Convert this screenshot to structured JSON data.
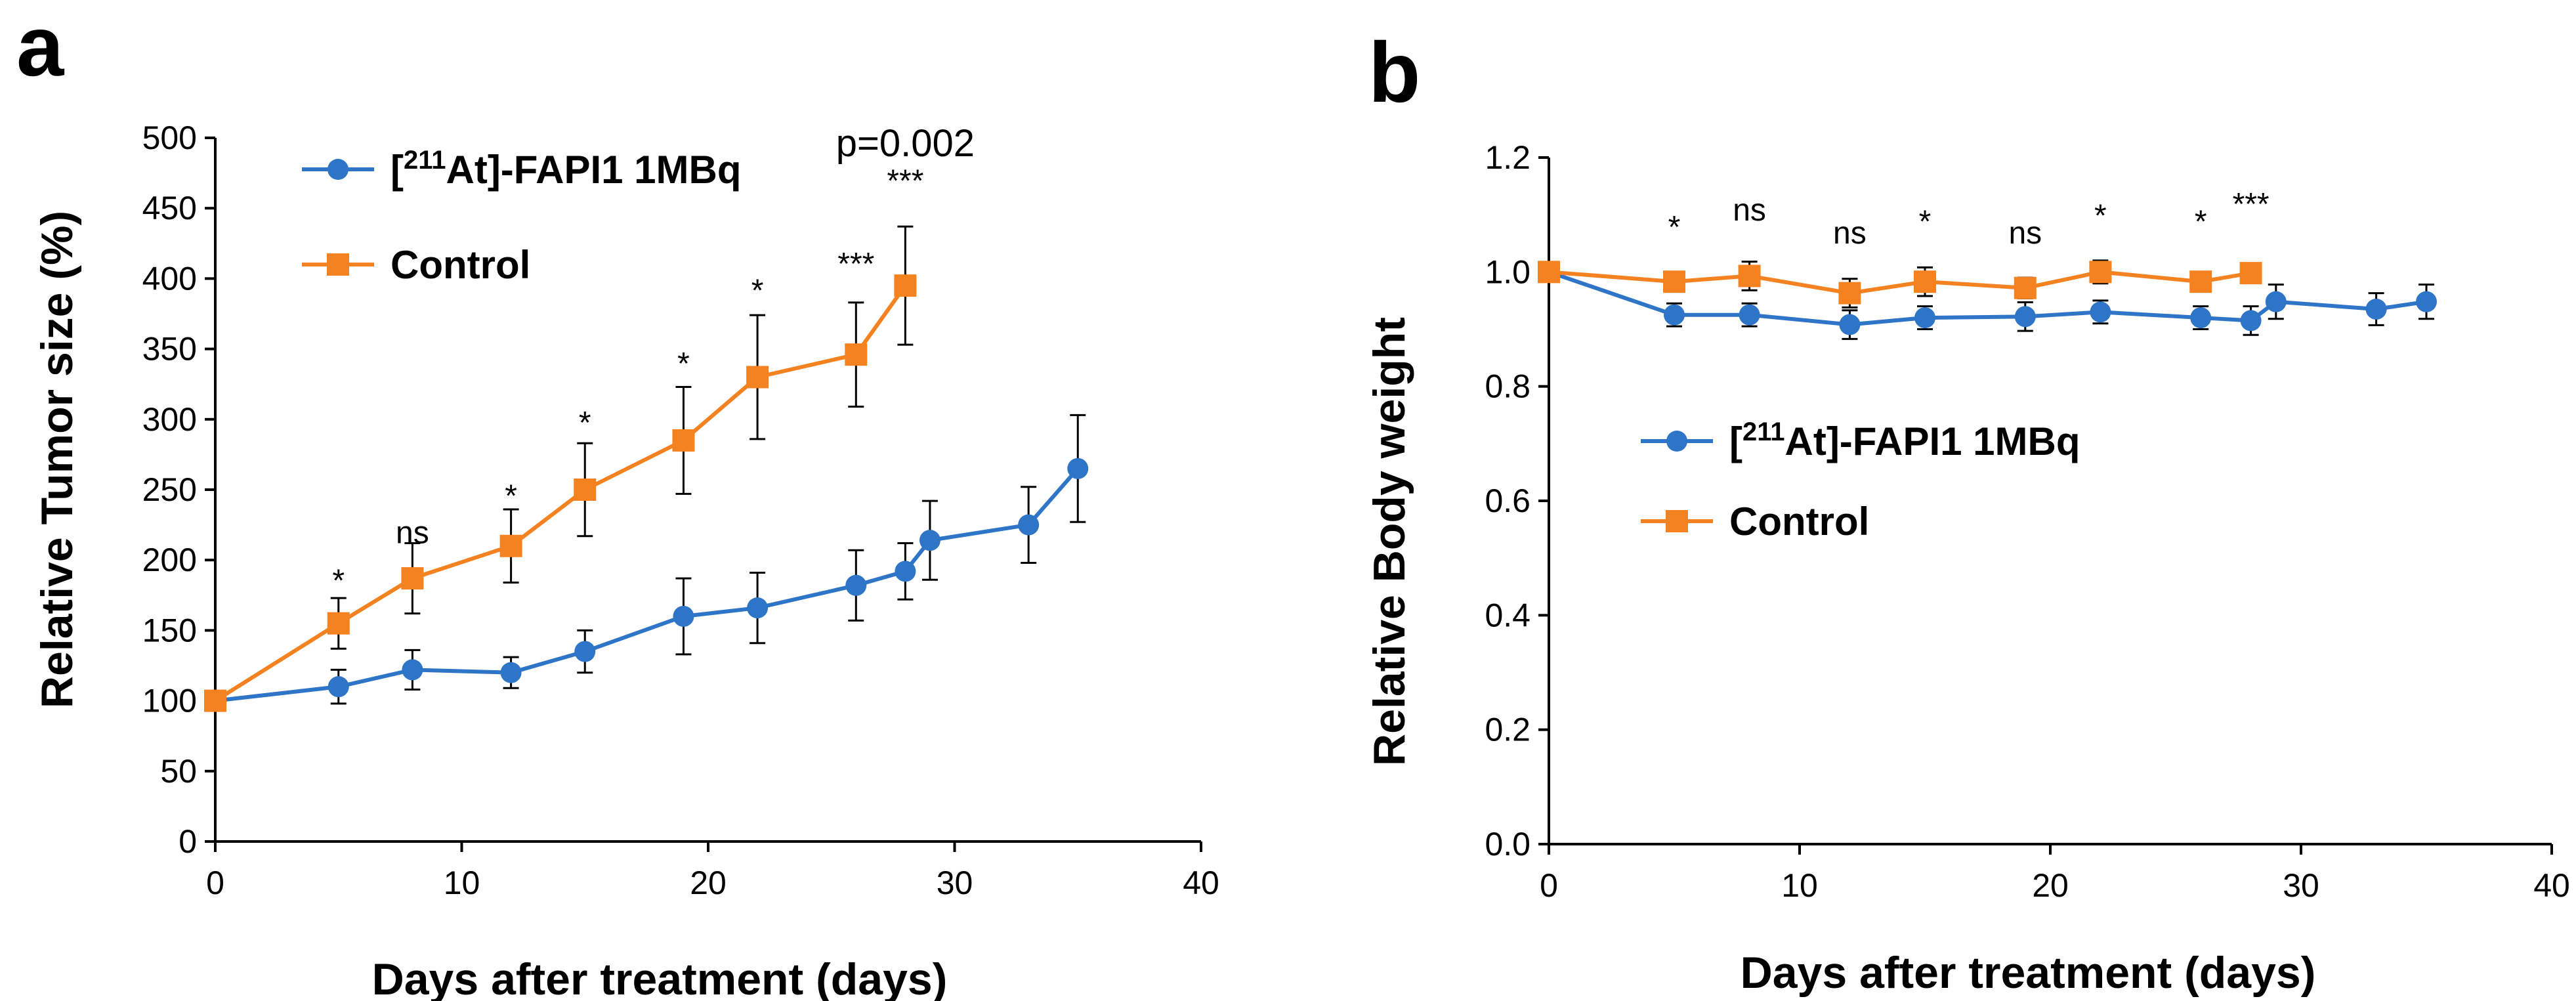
{
  "colors": {
    "treated": "#2E75C8",
    "control": "#F58220",
    "axis": "#000000"
  },
  "chart_data": [
    {
      "type": "line",
      "panel": "a",
      "xlabel": "Days after treatment (days)",
      "ylabel": "Relative Tumor size (%)",
      "xlim": [
        0,
        40
      ],
      "ylim": [
        0,
        500
      ],
      "xticks": [
        0,
        10,
        20,
        30,
        40
      ],
      "yticks": [
        0,
        50,
        100,
        150,
        200,
        250,
        300,
        350,
        400,
        450,
        500
      ],
      "legend": "top-left",
      "series": [
        {
          "name": "[211At]-FAPI1 1MBq",
          "label_pre": "[",
          "label_sup": "211",
          "label_post": "At]-FAPI1 1MBq",
          "color": "#2E75C8",
          "marker": "circle",
          "x": [
            0,
            5,
            8,
            12,
            15,
            19,
            22,
            26,
            28,
            29,
            33,
            35
          ],
          "y": [
            100,
            110,
            122,
            120,
            135,
            160,
            166,
            182,
            192,
            214,
            225,
            265
          ],
          "err": [
            0,
            12,
            14,
            11,
            15,
            27,
            25,
            25,
            20,
            28,
            27,
            38
          ]
        },
        {
          "name": "Control",
          "label_pre": "Control",
          "label_sup": "",
          "label_post": "",
          "color": "#F58220",
          "marker": "square",
          "x": [
            0,
            5,
            8,
            12,
            15,
            19,
            22,
            26,
            28
          ],
          "y": [
            100,
            155,
            187,
            210,
            250,
            285,
            330,
            346,
            395
          ],
          "err": [
            0,
            18,
            25,
            26,
            33,
            38,
            44,
            37,
            42
          ]
        }
      ],
      "annotations": [
        {
          "text": "*",
          "x": 5,
          "y": 178
        },
        {
          "text": "ns",
          "x": 8,
          "y": 212
        },
        {
          "text": "*",
          "x": 12,
          "y": 238
        },
        {
          "text": "*",
          "x": 15,
          "y": 290
        },
        {
          "text": "*",
          "x": 19,
          "y": 332
        },
        {
          "text": "*",
          "x": 22,
          "y": 384
        },
        {
          "text": "***",
          "x": 26,
          "y": 403
        },
        {
          "text": "***",
          "x": 28,
          "y": 462
        },
        {
          "text": "p=0.002",
          "x": 28,
          "y": 487
        }
      ]
    },
    {
      "type": "line",
      "panel": "b",
      "xlabel": "Days after treatment (days)",
      "ylabel": "Relative Body weight",
      "xlim": [
        0,
        40
      ],
      "ylim": [
        0,
        1.2
      ],
      "xticks": [
        0,
        10,
        20,
        30,
        40
      ],
      "yticks": [
        "0.0",
        "0.2",
        "0.4",
        "0.6",
        "0.8",
        "1.0",
        "1.2"
      ],
      "legend": "center-left",
      "series": [
        {
          "name": "[211At]-FAPI1 1MBq",
          "label_pre": "[",
          "label_sup": "211",
          "label_post": "At]-FAPI1 1MBq",
          "color": "#2E75C8",
          "marker": "circle",
          "x": [
            0,
            5,
            8,
            12,
            15,
            19,
            22,
            26,
            28,
            29,
            33,
            35
          ],
          "y": [
            1.0,
            0.925,
            0.925,
            0.908,
            0.92,
            0.922,
            0.93,
            0.92,
            0.915,
            0.948,
            0.935,
            0.948
          ],
          "err": [
            0,
            0.02,
            0.02,
            0.025,
            0.02,
            0.025,
            0.02,
            0.02,
            0.025,
            0.03,
            0.028,
            0.03
          ]
        },
        {
          "name": "Control",
          "label_pre": "Control",
          "label_sup": "",
          "label_post": "",
          "color": "#F58220",
          "marker": "square",
          "x": [
            0,
            5,
            8,
            12,
            15,
            19,
            22,
            26,
            28
          ],
          "y": [
            1.0,
            0.983,
            0.993,
            0.963,
            0.983,
            0.972,
            1.0,
            0.983,
            0.998
          ],
          "err": [
            0,
            0.01,
            0.025,
            0.025,
            0.025,
            0.018,
            0.02,
            0.012,
            0.015
          ]
        }
      ],
      "annotations": [
        {
          "text": "*",
          "x": 5,
          "y": 1.06
        },
        {
          "text": "ns",
          "x": 8,
          "y": 1.09
        },
        {
          "text": "ns",
          "x": 12,
          "y": 1.05
        },
        {
          "text": "*",
          "x": 15,
          "y": 1.07
        },
        {
          "text": "ns",
          "x": 19,
          "y": 1.05
        },
        {
          "text": "*",
          "x": 22,
          "y": 1.08
        },
        {
          "text": "*",
          "x": 26,
          "y": 1.07
        },
        {
          "text": "***",
          "x": 28,
          "y": 1.1
        }
      ]
    }
  ]
}
